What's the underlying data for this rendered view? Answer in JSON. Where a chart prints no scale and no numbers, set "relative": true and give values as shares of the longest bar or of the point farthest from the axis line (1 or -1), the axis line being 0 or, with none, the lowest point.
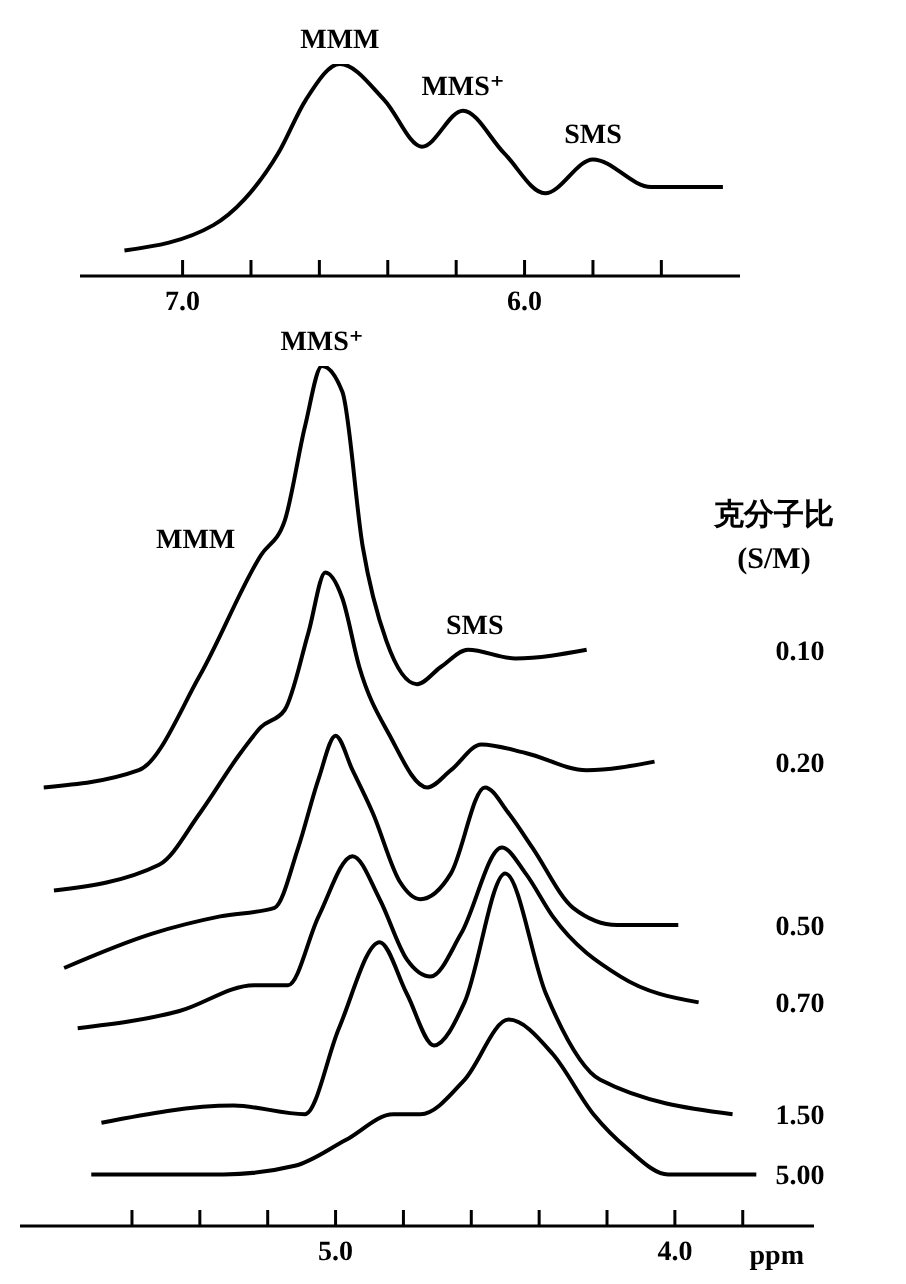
{
  "chart_data": [
    {
      "type": "line",
      "relative": true,
      "color": "#000000",
      "xlim": [
        7.3,
        5.37
      ],
      "xticks": [
        {
          "value": 7,
          "label": "7.0"
        },
        {
          "value": 6.8,
          "label": null
        },
        {
          "value": 6.6,
          "label": null
        },
        {
          "value": 6.4,
          "label": null
        },
        {
          "value": 6.2,
          "label": null
        },
        {
          "value": 6,
          "label": "6.0"
        },
        {
          "value": 5.8,
          "label": null
        },
        {
          "value": 5.6,
          "label": null
        }
      ],
      "x": [
        7.17,
        6.91,
        6.82,
        6.72,
        6.64,
        6.54,
        6.41,
        6.3,
        6.18,
        6.06,
        5.94,
        5.8,
        5.63,
        5.42
      ],
      "values": [
        0.12,
        0.24,
        0.36,
        0.58,
        0.83,
        1.0,
        0.83,
        0.61,
        0.78,
        0.58,
        0.39,
        0.55,
        0.42,
        0.42
      ],
      "annotations": [
        {
          "text": "MMM",
          "x": 6.54,
          "y": 1.0
        },
        {
          "text": "MMS⁺",
          "x": 6.18,
          "y": 0.78
        },
        {
          "text": "SMS",
          "x": 5.8,
          "y": 0.55
        }
      ]
    },
    {
      "type": "line",
      "relative": true,
      "xlim": [
        5.93,
        3.59
      ],
      "xlabel": "ppm",
      "legend_title": "克分子比 (S/M)",
      "xticks": [
        {
          "value": 5.6,
          "label": null
        },
        {
          "value": 5.4,
          "label": null
        },
        {
          "value": 5.2,
          "label": null
        },
        {
          "value": 5,
          "label": "5.0"
        },
        {
          "value": 4.8,
          "label": null
        },
        {
          "value": 4.6,
          "label": null
        },
        {
          "value": 4.4,
          "label": null
        },
        {
          "value": 4.2,
          "label": null
        },
        {
          "value": 4,
          "label": "4.0"
        },
        {
          "value": 3.8,
          "label": null
        }
      ],
      "annotations": [
        {
          "text": "MMS⁺",
          "x": 5.04,
          "y": 1.0
        },
        "MMM",
        {
          "text": "SMS",
          "x": 4.59,
          "y": 0.67
        }
      ],
      "series": [
        {
          "name": "0.10",
          "color": "#000000",
          "x": [
            5.86,
            5.58,
            5.4,
            5.22,
            5.15,
            5.09,
            5.04,
            4.98,
            4.92,
            4.85,
            4.76,
            4.69,
            4.61,
            4.47,
            4.26
          ],
          "values": [
            0.51,
            0.53,
            0.64,
            0.78,
            0.82,
            0.93,
            1.0,
            0.97,
            0.79,
            0.68,
            0.63,
            0.65,
            0.67,
            0.66,
            0.67
          ]
        },
        {
          "name": "0.20",
          "color": "#000000",
          "x": [
            5.83,
            5.52,
            5.4,
            5.28,
            5.22,
            5.15,
            5.08,
            5.03,
            4.98,
            4.93,
            4.84,
            4.73,
            4.66,
            4.57,
            4.44,
            4.26,
            4.06
          ],
          "values": [
            0.39,
            0.42,
            0.48,
            0.55,
            0.58,
            0.6,
            0.69,
            0.76,
            0.73,
            0.65,
            0.57,
            0.51,
            0.53,
            0.56,
            0.55,
            0.53,
            0.54
          ]
        },
        {
          "name": "0.50",
          "color": "#000000",
          "x": [
            5.8,
            5.54,
            5.34,
            5.18,
            5.11,
            5.05,
            5.0,
            4.95,
            4.89,
            4.81,
            4.75,
            4.66,
            4.56,
            4.49,
            4.42,
            4.3,
            4.17,
            3.99
          ],
          "values": [
            0.3,
            0.34,
            0.36,
            0.37,
            0.44,
            0.52,
            0.57,
            0.53,
            0.48,
            0.4,
            0.38,
            0.41,
            0.51,
            0.48,
            0.44,
            0.37,
            0.35,
            0.35
          ]
        },
        {
          "name": "0.70",
          "color": "#000000",
          "x": [
            5.76,
            5.46,
            5.24,
            5.14,
            5.05,
            4.95,
            4.87,
            4.79,
            4.72,
            4.63,
            4.51,
            4.44,
            4.36,
            4.16,
            3.93
          ],
          "values": [
            0.23,
            0.25,
            0.28,
            0.28,
            0.36,
            0.43,
            0.38,
            0.31,
            0.29,
            0.34,
            0.44,
            0.41,
            0.36,
            0.29,
            0.26
          ]
        },
        {
          "name": "1.50",
          "color": "#000000",
          "x": [
            5.69,
            5.3,
            5.09,
            4.99,
            4.87,
            4.79,
            4.71,
            4.62,
            4.5,
            4.38,
            4.22,
            3.83
          ],
          "values": [
            0.12,
            0.14,
            0.13,
            0.23,
            0.33,
            0.27,
            0.21,
            0.26,
            0.41,
            0.27,
            0.17,
            0.13
          ]
        },
        {
          "name": "5.00",
          "color": "#000000",
          "x": [
            5.72,
            5.33,
            5.12,
            4.97,
            4.83,
            4.75,
            4.62,
            4.49,
            4.36,
            4.24,
            4.14,
            4.02,
            3.76
          ],
          "values": [
            0.06,
            0.06,
            0.07,
            0.1,
            0.13,
            0.13,
            0.17,
            0.24,
            0.2,
            0.13,
            0.09,
            0.06,
            0.06
          ]
        }
      ]
    }
  ]
}
